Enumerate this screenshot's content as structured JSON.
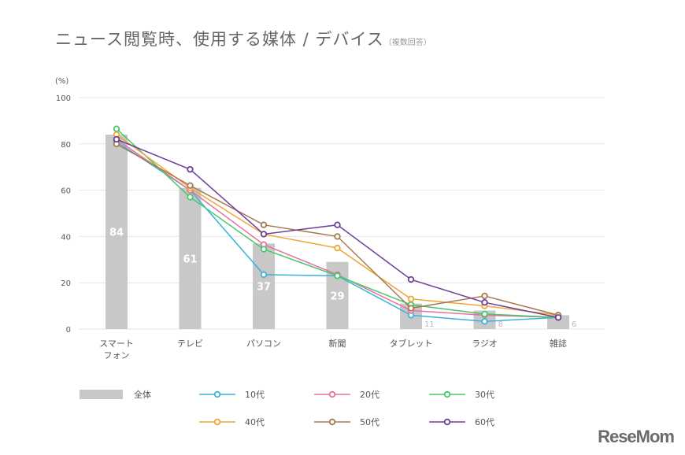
{
  "chart_data": {
    "type": "bar+line",
    "title": "ニュース閲覧時、使用する媒体 / デバイス",
    "subtitle": "（複数回答）",
    "ylabel": "(%)",
    "ylim": [
      0,
      100
    ],
    "yticks": [
      0,
      20,
      40,
      60,
      80,
      100
    ],
    "grid": true,
    "legend_position": "bottom",
    "categories": [
      "スマート\nフォン",
      "テレビ",
      "パソコン",
      "新聞",
      "タブレット",
      "ラジオ",
      "雑誌"
    ],
    "bar_series": {
      "name": "全体",
      "color": "#c8c8c8",
      "values": [
        84,
        61,
        37,
        29,
        11,
        8,
        6
      ]
    },
    "series": [
      {
        "name": "10代",
        "color": "#3bb3d8",
        "values": [
          81,
          60,
          23.5,
          23,
          6,
          3.3,
          5
        ]
      },
      {
        "name": "20代",
        "color": "#e8709f",
        "values": [
          82,
          60,
          36.5,
          23.5,
          8,
          6,
          5
        ]
      },
      {
        "name": "30代",
        "color": "#45c96a",
        "values": [
          86.5,
          57,
          34.5,
          23,
          10.5,
          6.5,
          5
        ]
      },
      {
        "name": "40代",
        "color": "#f0a636",
        "values": [
          84,
          61,
          41,
          35,
          13,
          10,
          6
        ]
      },
      {
        "name": "50代",
        "color": "#a57a52",
        "values": [
          80,
          62,
          45,
          40,
          9,
          14.3,
          6
        ]
      },
      {
        "name": "60代",
        "color": "#6e3f98",
        "values": [
          82,
          69,
          41,
          45,
          21.4,
          11.5,
          5
        ]
      }
    ]
  },
  "logo": "ReseMom"
}
